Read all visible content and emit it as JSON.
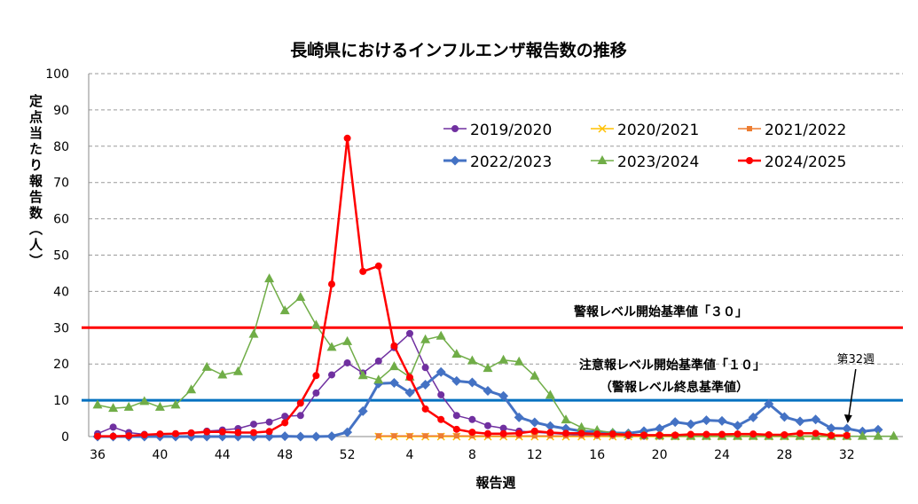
{
  "chart_data": {
    "type": "line",
    "title": "長崎県におけるインフルエンザ報告数の推移",
    "xlabel": "報告週",
    "ylabel": "定点当たり報告数（人）",
    "ylim": [
      0,
      100
    ],
    "yticks": [
      "0",
      "10",
      "20",
      "30",
      "40",
      "50",
      "60",
      "70",
      "80",
      "90",
      "100"
    ],
    "x": [
      "36",
      "37",
      "38",
      "39",
      "40",
      "41",
      "42",
      "43",
      "44",
      "45",
      "46",
      "47",
      "48",
      "49",
      "50",
      "51",
      "52",
      "1",
      "2",
      "3",
      "4",
      "5",
      "6",
      "7",
      "8",
      "9",
      "10",
      "11",
      "12",
      "13",
      "14",
      "15",
      "16",
      "17",
      "18",
      "19",
      "20",
      "21",
      "22",
      "23",
      "24",
      "25",
      "26",
      "27",
      "28",
      "29",
      "30",
      "31",
      "32",
      "33",
      "34",
      "35"
    ],
    "xtick_labels": [
      "36",
      "40",
      "44",
      "48",
      "52",
      "4",
      "8",
      "12",
      "16",
      "20",
      "24",
      "28",
      "32"
    ],
    "grid": true,
    "legend": "top-right",
    "series": [
      {
        "name": "2019/2020",
        "color": "#7030a0",
        "marker": "circle",
        "width": 1.5,
        "values": [
          0.8,
          2.6,
          1.1,
          0.6,
          0.6,
          0.7,
          1.0,
          1.5,
          1.8,
          2.2,
          3.4,
          4.0,
          5.6,
          5.8,
          12.0,
          17.0,
          20.3,
          17.5,
          20.8,
          24.5,
          28.4,
          19.0,
          11.5,
          5.8,
          4.7,
          3.0,
          2.3,
          1.5,
          1.2,
          0.9,
          0.6,
          0.5,
          0.3,
          0.3,
          0.2,
          0.1,
          0.1,
          0.1,
          0.1,
          0.1,
          0.1,
          null,
          null,
          null,
          null,
          null,
          null,
          null,
          null,
          null,
          null,
          null
        ]
      },
      {
        "name": "2020/2021",
        "color": "#ffc000",
        "marker": "x",
        "width": 1.5,
        "values": [
          null,
          null,
          null,
          null,
          null,
          null,
          null,
          null,
          null,
          null,
          null,
          null,
          null,
          null,
          null,
          null,
          null,
          null,
          0,
          0,
          0,
          0,
          0,
          0,
          0,
          0,
          0,
          0,
          0,
          0,
          0,
          0,
          0,
          0,
          0,
          0,
          0,
          0,
          0,
          0,
          0,
          0,
          0,
          0,
          0,
          0,
          0,
          0,
          0,
          null,
          null,
          null
        ]
      },
      {
        "name": "2021/2022",
        "color": "#ed7d31",
        "marker": "square",
        "width": 1.5,
        "values": [
          null,
          null,
          null,
          null,
          null,
          null,
          null,
          null,
          null,
          null,
          null,
          null,
          null,
          null,
          null,
          null,
          null,
          null,
          0.2,
          0.2,
          0.2,
          0.2,
          0.2,
          0.2,
          0.2,
          0.2,
          0.2,
          0.2,
          0.2,
          0.2,
          0.2,
          0.2,
          0.2,
          0.2,
          0.2,
          0.2,
          0.2,
          0.2,
          0.2,
          0.2,
          0.2,
          0.2,
          0.2,
          0.2,
          0.2,
          0.2,
          0.2,
          0.2,
          0.2,
          null,
          null,
          null
        ]
      },
      {
        "name": "2022/2023",
        "color": "#4472c4",
        "marker": "diamond",
        "width": 3,
        "values": [
          0,
          0,
          0,
          0,
          0,
          0,
          0,
          0,
          0,
          0,
          0,
          0,
          0.1,
          0,
          0,
          0.1,
          1.2,
          7.0,
          14.6,
          14.8,
          12.1,
          14.3,
          17.8,
          15.3,
          14.9,
          12.6,
          11.2,
          5.3,
          3.9,
          2.9,
          2.2,
          1.5,
          1.3,
          1.0,
          0.9,
          1.5,
          2.2,
          4.0,
          3.4,
          4.5,
          4.3,
          3.0,
          5.3,
          9.0,
          5.4,
          4.2,
          4.7,
          2.3,
          2.2,
          1.4,
          1.9,
          null
        ]
      },
      {
        "name": "2023/2024",
        "color": "#70ad47",
        "marker": "triangle",
        "width": 1.5,
        "values": [
          8.7,
          7.8,
          8.1,
          9.7,
          8.1,
          8.7,
          12.9,
          19.1,
          17.0,
          17.9,
          28.2,
          43.5,
          34.7,
          38.4,
          30.7,
          24.6,
          26.2,
          16.8,
          15.6,
          19.3,
          16.4,
          26.7,
          27.7,
          22.7,
          20.9,
          18.8,
          21.1,
          20.6,
          16.7,
          11.4,
          4.6,
          2.5,
          1.7,
          1.0,
          0.6,
          0.3,
          0.2,
          0.1,
          0.1,
          0.1,
          0.1,
          0.1,
          0.1,
          0.1,
          0.1,
          0.1,
          0.1,
          0.1,
          0.1,
          0.1,
          0.1,
          0.1
        ]
      },
      {
        "name": "2024/2025",
        "color": "#ff0000",
        "marker": "circle",
        "width": 2.5,
        "values": [
          0.1,
          0.1,
          0.2,
          0.5,
          0.7,
          0.8,
          1.0,
          1.3,
          1.3,
          1.1,
          1.1,
          1.4,
          3.8,
          9.2,
          16.8,
          42.0,
          82.2,
          45.5,
          47.0,
          25.0,
          16.3,
          7.6,
          4.7,
          2.0,
          1.2,
          0.8,
          0.8,
          0.9,
          1.5,
          1.1,
          0.9,
          0.9,
          0.7,
          0.7,
          0.5,
          0.4,
          0.4,
          0.4,
          0.6,
          0.6,
          0.6,
          0.7,
          0.7,
          0.5,
          0.5,
          0.9,
          0.9,
          0.3,
          0.3,
          null,
          null,
          null
        ]
      }
    ],
    "reference_lines": [
      {
        "value": 30,
        "color": "#ff0000",
        "label": "警報レベル開始基準値「３０」"
      },
      {
        "value": 10,
        "color": "#0070c0",
        "label": "注意報レベル開始基準値「１０」",
        "sublabel": "（警報レベル終息基準値）"
      }
    ],
    "annotations": [
      {
        "text": "第32週",
        "x": "32"
      }
    ]
  }
}
